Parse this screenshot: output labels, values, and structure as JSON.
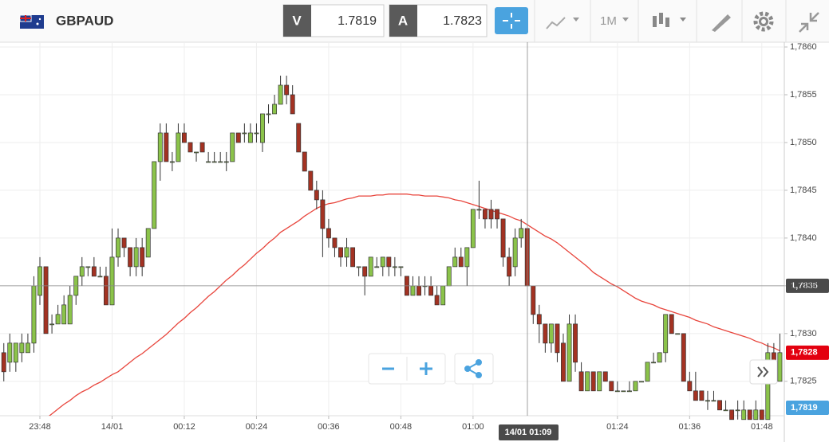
{
  "toolbar": {
    "symbol": "GBPAUD",
    "bid_label": "V",
    "bid": "1.7819",
    "ask_label": "A",
    "ask": "1.7823",
    "timeframe": "1M"
  },
  "chart_data": {
    "type": "candlestick",
    "up_color": "#8bc34a",
    "down_color": "#a33222",
    "categories": [
      null,
      null,
      null,
      null,
      null,
      null,
      "23:48",
      null,
      null,
      null,
      null,
      null,
      null,
      null,
      null,
      null,
      null,
      null,
      "14/01",
      null,
      null,
      null,
      null,
      null,
      null,
      null,
      null,
      null,
      null,
      null,
      "00:12",
      null,
      null,
      null,
      null,
      null,
      null,
      null,
      null,
      null,
      null,
      null,
      "00:24",
      null,
      null,
      null,
      null,
      null,
      null,
      null,
      null,
      null,
      null,
      null,
      "00:36",
      null,
      null,
      null,
      null,
      null,
      null,
      null,
      null,
      null,
      null,
      null,
      "00:48",
      null,
      null,
      null,
      null,
      null,
      null,
      null,
      null,
      null,
      null,
      null,
      "01:00",
      null,
      null,
      null,
      null,
      null,
      null,
      null,
      null,
      null,
      null,
      null,
      null,
      null,
      null,
      null,
      null,
      null,
      null,
      null,
      null,
      null,
      null,
      null,
      "01:24",
      null,
      null,
      null,
      null,
      null,
      null,
      null,
      null,
      null,
      null,
      null,
      "01:36",
      null,
      null,
      null,
      null,
      null,
      null,
      null,
      null,
      null,
      null,
      null,
      "01:48",
      null,
      null,
      null
    ],
    "ohlc": [
      [
        1.7828,
        1.7829,
        1.7825,
        1.7826
      ],
      [
        1.7827,
        1.783,
        1.7826,
        1.7829
      ],
      [
        1.7827,
        1.7829,
        1.7826,
        1.7829
      ],
      [
        1.7828,
        1.783,
        1.7827,
        1.7829
      ],
      [
        1.7828,
        1.783,
        1.7828,
        1.7829
      ],
      [
        1.7829,
        1.7836,
        1.7828,
        1.7835
      ],
      [
        1.7834,
        1.7838,
        1.7833,
        1.7837
      ],
      [
        1.7837,
        1.7837,
        1.783,
        1.783
      ],
      [
        1.7831,
        1.7832,
        1.783,
        1.7831
      ],
      [
        1.7831,
        1.7833,
        1.7831,
        1.7832
      ],
      [
        1.7831,
        1.7834,
        1.7831,
        1.7833
      ],
      [
        1.7831,
        1.7835,
        1.7831,
        1.7834
      ],
      [
        1.7834,
        1.7836,
        1.7833,
        1.7836
      ],
      [
        1.7836,
        1.7838,
        1.7835,
        1.7837
      ],
      [
        1.7837,
        1.7837,
        1.7836,
        1.7837
      ],
      [
        1.7837,
        1.7838,
        1.7836,
        1.7836
      ],
      [
        1.7836,
        1.7837,
        1.7836,
        1.7836
      ],
      [
        1.7836,
        1.7837,
        1.7833,
        1.7833
      ],
      [
        1.7833,
        1.7841,
        1.7833,
        1.7838
      ],
      [
        1.7838,
        1.7841,
        1.7837,
        1.784
      ],
      [
        1.784,
        1.784,
        1.7838,
        1.7839
      ],
      [
        1.7839,
        1.7839,
        1.7836,
        1.7837
      ],
      [
        1.7837,
        1.784,
        1.7836,
        1.7839
      ],
      [
        1.7839,
        1.784,
        1.7836,
        1.7837
      ],
      [
        1.7838,
        1.7841,
        1.7838,
        1.7841
      ],
      [
        1.7841,
        1.7848,
        1.7841,
        1.7848
      ],
      [
        1.7848,
        1.7852,
        1.7846,
        1.7851
      ],
      [
        1.7851,
        1.7852,
        1.7848,
        1.7848
      ],
      [
        1.7848,
        1.7849,
        1.7847,
        1.7848
      ],
      [
        1.7848,
        1.7852,
        1.7848,
        1.7851
      ],
      [
        1.7851,
        1.7852,
        1.785,
        1.785
      ],
      [
        1.785,
        1.785,
        1.7849,
        1.7849
      ],
      [
        1.7849,
        1.7849,
        1.7848,
        1.7849
      ],
      [
        1.785,
        1.785,
        1.7849,
        1.7849
      ],
      [
        1.7848,
        1.7849,
        1.7848,
        1.7848
      ],
      [
        1.7848,
        1.7849,
        1.7848,
        1.7848
      ],
      [
        1.7848,
        1.7849,
        1.7848,
        1.7848
      ],
      [
        1.7848,
        1.7849,
        1.7847,
        1.7848
      ],
      [
        1.7848,
        1.7851,
        1.7848,
        1.7851
      ],
      [
        1.7851,
        1.7851,
        1.785,
        1.785
      ],
      [
        1.7851,
        1.7852,
        1.785,
        1.7851
      ],
      [
        1.785,
        1.7852,
        1.785,
        1.7851
      ],
      [
        1.7851,
        1.7852,
        1.785,
        1.7851
      ],
      [
        1.785,
        1.7853,
        1.7849,
        1.7853
      ],
      [
        1.7853,
        1.7854,
        1.7852,
        1.7853
      ],
      [
        1.7853,
        1.7855,
        1.7853,
        1.7854
      ],
      [
        1.7854,
        1.7857,
        1.7854,
        1.7856
      ],
      [
        1.7856,
        1.7857,
        1.7854,
        1.7855
      ],
      [
        1.7855,
        1.7856,
        1.7853,
        1.7853
      ],
      [
        1.7852,
        1.7852,
        1.7849,
        1.7849
      ],
      [
        1.7849,
        1.7849,
        1.7847,
        1.7847
      ],
      [
        1.7847,
        1.7847,
        1.7845,
        1.7845
      ],
      [
        1.7845,
        1.7846,
        1.7843,
        1.7844
      ],
      [
        1.7844,
        1.7845,
        1.7838,
        1.7841
      ],
      [
        1.7841,
        1.7842,
        1.7839,
        1.784
      ],
      [
        1.784,
        1.784,
        1.7838,
        1.7839
      ],
      [
        1.7839,
        1.7839,
        1.7837,
        1.7838
      ],
      [
        1.7838,
        1.784,
        1.7837,
        1.7839
      ],
      [
        1.7839,
        1.7839,
        1.7837,
        1.7837
      ],
      [
        1.7837,
        1.7837,
        1.7836,
        1.7837
      ],
      [
        1.7837,
        1.7837,
        1.7834,
        1.7836
      ],
      [
        1.7836,
        1.7838,
        1.7836,
        1.7838
      ],
      [
        1.7837,
        1.7838,
        1.7837,
        1.7837
      ],
      [
        1.7837,
        1.7838,
        1.7836,
        1.7838
      ],
      [
        1.7838,
        1.7838,
        1.7836,
        1.7837
      ],
      [
        1.7837,
        1.7838,
        1.7836,
        1.7837
      ],
      [
        1.7837,
        1.7837,
        1.7836,
        1.7837
      ],
      [
        1.7836,
        1.7836,
        1.7834,
        1.7834
      ],
      [
        1.7834,
        1.7836,
        1.7834,
        1.7835
      ],
      [
        1.7835,
        1.7836,
        1.7834,
        1.7834
      ],
      [
        1.7835,
        1.7836,
        1.7834,
        1.7835
      ],
      [
        1.7835,
        1.7836,
        1.7834,
        1.7834
      ],
      [
        1.7834,
        1.7835,
        1.7833,
        1.7833
      ],
      [
        1.7833,
        1.7835,
        1.7833,
        1.7835
      ],
      [
        1.7835,
        1.7837,
        1.7835,
        1.7837
      ],
      [
        1.7837,
        1.7839,
        1.7837,
        1.7838
      ],
      [
        1.7838,
        1.7839,
        1.7837,
        1.7837
      ],
      [
        1.7837,
        1.7839,
        1.7835,
        1.7839
      ],
      [
        1.7839,
        1.7843,
        1.7839,
        1.7843
      ],
      [
        1.7843,
        1.7846,
        1.7842,
        1.7843
      ],
      [
        1.7843,
        1.7843,
        1.7841,
        1.7842
      ],
      [
        1.7843,
        1.7844,
        1.7841,
        1.7842
      ],
      [
        1.7843,
        1.7843,
        1.7841,
        1.7842
      ],
      [
        1.7842,
        1.7842,
        1.7837,
        1.7838
      ],
      [
        1.7838,
        1.7839,
        1.7835,
        1.7836
      ],
      [
        1.7837,
        1.7841,
        1.7836,
        1.784
      ],
      [
        1.784,
        1.7842,
        1.7839,
        1.7841
      ],
      [
        1.7841,
        1.7841,
        1.7835,
        1.7835
      ],
      [
        1.7835,
        1.7835,
        1.7831,
        1.7832
      ],
      [
        1.7832,
        1.7833,
        1.7829,
        1.7831
      ],
      [
        1.7831,
        1.7831,
        1.7828,
        1.7829
      ],
      [
        1.7829,
        1.7831,
        1.7828,
        1.7831
      ],
      [
        1.7831,
        1.7831,
        1.7827,
        1.7828
      ],
      [
        1.7829,
        1.783,
        1.7825,
        1.7825
      ],
      [
        1.7825,
        1.7832,
        1.7825,
        1.7831
      ],
      [
        1.7831,
        1.7832,
        1.7826,
        1.7827
      ],
      [
        1.7826,
        1.7827,
        1.7824,
        1.7824
      ],
      [
        1.7824,
        1.7826,
        1.7824,
        1.7826
      ],
      [
        1.7826,
        1.7826,
        1.7824,
        1.7824
      ],
      [
        1.7824,
        1.7826,
        1.7824,
        1.7826
      ],
      [
        1.7826,
        1.7826,
        1.7825,
        1.7825
      ],
      [
        1.7825,
        1.7825,
        1.7824,
        1.7824
      ],
      [
        1.7824,
        1.7825,
        1.7824,
        1.7824
      ],
      [
        1.7824,
        1.7824,
        1.7824,
        1.7824
      ],
      [
        1.7824,
        1.7825,
        1.7824,
        1.7824
      ],
      [
        1.7824,
        1.7825,
        1.7824,
        1.7825
      ],
      [
        1.7825,
        1.7825,
        1.7825,
        1.7825
      ],
      [
        1.7825,
        1.7827,
        1.7825,
        1.7827
      ],
      [
        1.7827,
        1.7828,
        1.7827,
        1.7827
      ],
      [
        1.7827,
        1.7828,
        1.7827,
        1.7828
      ],
      [
        1.7828,
        1.7832,
        1.7827,
        1.7832
      ],
      [
        1.7832,
        1.7832,
        1.783,
        1.783
      ],
      [
        1.783,
        1.783,
        1.783,
        1.783
      ],
      [
        1.783,
        1.783,
        1.7825,
        1.7825
      ],
      [
        1.7825,
        1.7826,
        1.7824,
        1.7824
      ],
      [
        1.7824,
        1.7826,
        1.7823,
        1.7823
      ],
      [
        1.7824,
        1.7824,
        1.7823,
        1.7823
      ],
      [
        1.7823,
        1.7824,
        1.7822,
        1.7823
      ],
      [
        1.7823,
        1.7824,
        1.7823,
        1.7823
      ],
      [
        1.7823,
        1.7823,
        1.7822,
        1.7822
      ],
      [
        1.7822,
        1.7823,
        1.7822,
        1.7822
      ],
      [
        1.7822,
        1.7822,
        1.7821,
        1.7821
      ],
      [
        1.7822,
        1.7823,
        1.7821,
        1.7822
      ],
      [
        1.7821,
        1.7823,
        1.7821,
        1.7822
      ],
      [
        1.7822,
        1.7822,
        1.7821,
        1.7821
      ],
      [
        1.7821,
        1.7823,
        1.7821,
        1.7822
      ],
      [
        1.7822,
        1.7822,
        1.7821,
        1.7821
      ],
      [
        1.7821,
        1.7829,
        1.7821,
        1.7828
      ],
      [
        1.7828,
        1.7829,
        1.7827,
        1.7827
      ],
      [
        1.7825,
        1.783,
        1.7825,
        1.7828
      ]
    ],
    "moving_average": {
      "color": "#e8453c",
      "values": [
        null,
        null,
        null,
        null,
        null,
        null,
        null,
        1.78211,
        1.78216,
        1.78221,
        1.78226,
        1.7823,
        1.78235,
        1.78239,
        1.78242,
        1.78246,
        1.78249,
        1.78253,
        1.78257,
        1.7826,
        1.78265,
        1.7827,
        1.78275,
        1.78279,
        1.78284,
        1.78289,
        1.78294,
        1.78299,
        1.78305,
        1.78311,
        1.78316,
        1.78322,
        1.78327,
        1.78333,
        1.78339,
        1.78344,
        1.7835,
        1.78356,
        1.78361,
        1.78367,
        1.78372,
        1.78378,
        1.78384,
        1.78389,
        1.78395,
        1.784,
        1.78406,
        1.7841,
        1.78414,
        1.78418,
        1.78423,
        1.78427,
        1.78431,
        1.78434,
        1.78436,
        1.78437,
        1.78439,
        1.78441,
        1.78442,
        1.78444,
        1.78444,
        1.78444,
        1.78445,
        1.78445,
        1.78446,
        1.78446,
        1.78446,
        1.78446,
        1.78445,
        1.78445,
        1.78444,
        1.78444,
        1.78444,
        1.78443,
        1.78442,
        1.7844,
        1.78439,
        1.78437,
        1.78435,
        1.78433,
        1.78431,
        1.78429,
        1.78427,
        1.78425,
        1.78423,
        1.7842,
        1.78418,
        1.78414,
        1.7841,
        1.78406,
        1.78402,
        1.78399,
        1.78395,
        1.7839,
        1.78385,
        1.7838,
        1.78375,
        1.7837,
        1.78364,
        1.7836,
        1.78356,
        1.78352,
        1.78349,
        1.78345,
        1.78341,
        1.78337,
        1.78334,
        1.78332,
        1.7833,
        1.78327,
        1.78325,
        1.78323,
        1.78321,
        1.78319,
        1.78317,
        1.78314,
        1.78312,
        1.7831,
        1.78307,
        1.78305,
        1.78303,
        1.78301,
        1.78299,
        1.78297,
        1.78295,
        1.78292,
        1.7829,
        1.78287,
        1.78285,
        1.78282
      ]
    },
    "ylim": [
      1.78214,
      1.78605
    ],
    "yticks": [
      {
        "value": 1.7825,
        "label": "1,7825"
      },
      {
        "value": 1.783,
        "label": "1,7830"
      },
      {
        "value": 1.7835,
        "label": "1,7835"
      },
      {
        "value": 1.784,
        "label": "1,7840"
      },
      {
        "value": 1.7845,
        "label": "1,7845"
      },
      {
        "value": 1.785,
        "label": "1,7850"
      },
      {
        "value": 1.7855,
        "label": "1,7855"
      },
      {
        "value": 1.786,
        "label": "1,7860"
      }
    ],
    "price_tags": [
      {
        "value": 1.7835,
        "label": "1,7835",
        "color": "#4a4a4a"
      },
      {
        "value": 1.7828,
        "label": "1,7828",
        "color": "#e3000f"
      },
      {
        "value": 1.7819,
        "label": "1,7819",
        "color": "#4aa3df"
      }
    ],
    "crosshair_label": "14/01 01:09",
    "grid": true
  }
}
